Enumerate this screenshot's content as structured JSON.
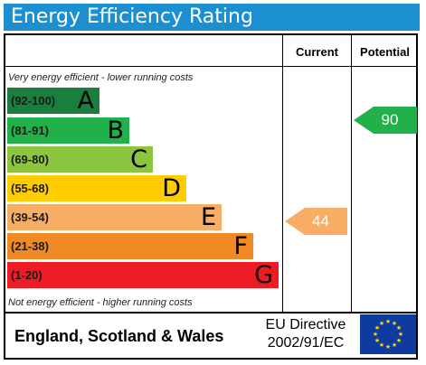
{
  "title": "Energy Efficiency Rating",
  "headers": {
    "current": "Current",
    "potential": "Potential"
  },
  "top_note": "Very energy efficient - lower running costs",
  "bottom_note": "Not energy efficient - higher running costs",
  "bands": [
    {
      "range": "(92-100)",
      "letter": "A",
      "color": "#1a7f3c"
    },
    {
      "range": "(81-91)",
      "letter": "B",
      "color": "#22b04b"
    },
    {
      "range": "(69-80)",
      "letter": "C",
      "color": "#8cc63e"
    },
    {
      "range": "(55-68)",
      "letter": "D",
      "color": "#ffcc00"
    },
    {
      "range": "(39-54)",
      "letter": "E",
      "color": "#f8ad65"
    },
    {
      "range": "(21-38)",
      "letter": "F",
      "color": "#f18a24"
    },
    {
      "range": "(1-20)",
      "letter": "G",
      "color": "#ed1c24"
    }
  ],
  "current_rating": {
    "value": "44",
    "color": "#f8ad65"
  },
  "potential_rating": {
    "value": "90",
    "color": "#22b04b"
  },
  "footer": {
    "region": "England, Scotland & Wales",
    "directive_line1": "EU Directive",
    "directive_line2": "2002/91/EC"
  },
  "flag_icon": "eu-flag-icon"
}
